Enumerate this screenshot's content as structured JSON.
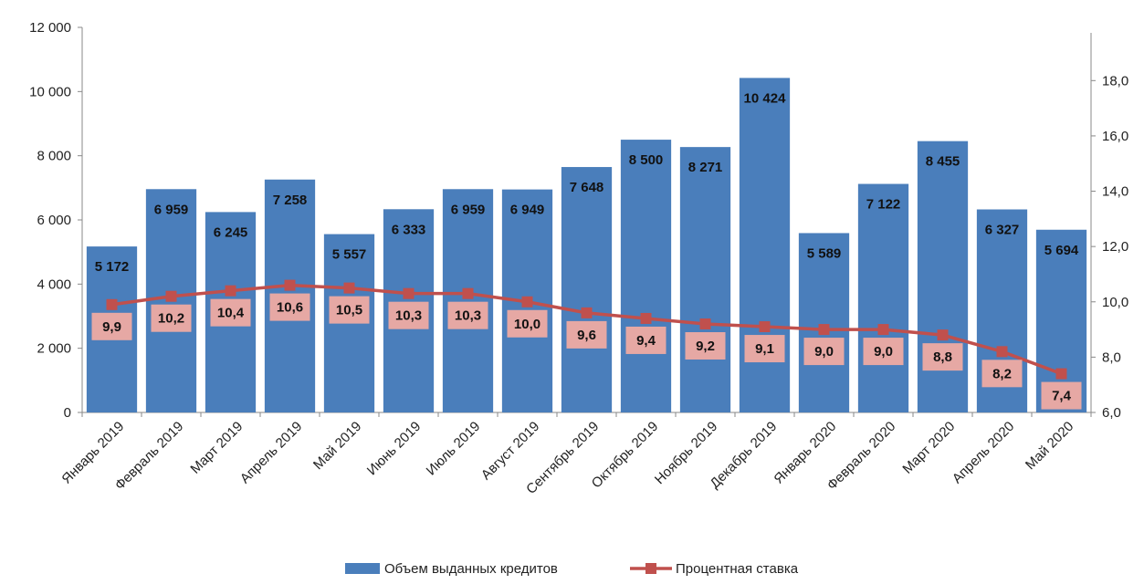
{
  "chart_data": {
    "type": "bar",
    "categories": [
      "Январь 2019",
      "Февраль 2019",
      "Март 2019",
      "Апрель 2019",
      "Май 2019",
      "Июнь 2019",
      "Июль 2019",
      "Август 2019",
      "Сентябрь 2019",
      "Октябрь 2019",
      "Ноябрь 2019",
      "Декабрь 2019",
      "Январь 2020",
      "Февраль 2020",
      "Март 2020",
      "Апрель 2020",
      "Май 2020"
    ],
    "series": [
      {
        "name": "Объем выданных кредитов",
        "type": "bar",
        "axis": "left",
        "color": "#4a7ebb",
        "values": [
          5172,
          6959,
          6245,
          7258,
          5557,
          6333,
          6959,
          6949,
          7648,
          8500,
          8271,
          10424,
          5589,
          7122,
          8455,
          6327,
          5694
        ],
        "labels": [
          "5 172",
          "6 959",
          "6 245",
          "7 258",
          "5 557",
          "6 333",
          "6 959",
          "6 949",
          "7 648",
          "8 500",
          "8 271",
          "10 424",
          "5 589",
          "7 122",
          "8 455",
          "6 327",
          "5 694"
        ]
      },
      {
        "name": "Процентная ставка",
        "type": "line",
        "axis": "right",
        "color": "#c0504d",
        "label_bg": "#e6a8a4",
        "values": [
          9.9,
          10.2,
          10.4,
          10.6,
          10.5,
          10.3,
          10.3,
          10.0,
          9.6,
          9.4,
          9.2,
          9.1,
          9.0,
          9.0,
          8.8,
          8.2,
          7.4
        ],
        "labels": [
          "9,9",
          "10,2",
          "10,4",
          "10,6",
          "10,5",
          "10,3",
          "10,3",
          "10,0",
          "9,6",
          "9,4",
          "9,2",
          "9,1",
          "9,0",
          "9,0",
          "8,8",
          "8,2",
          "7,4"
        ]
      }
    ],
    "y_left": {
      "ylim": [
        0,
        12000
      ],
      "ticks": [
        0,
        2000,
        4000,
        6000,
        8000,
        10000,
        12000
      ],
      "tick_labels": [
        "0",
        "2 000",
        "4 000",
        "6 000",
        "8 000",
        "10 000",
        "12 000"
      ]
    },
    "y_right": {
      "ylim": [
        6.0,
        19.0
      ],
      "ticks": [
        6,
        8,
        10,
        12,
        14,
        16,
        18
      ],
      "tick_labels": [
        "6,0",
        "8,0",
        "10,0",
        "12,0",
        "14,0",
        "16,0",
        "18,0"
      ]
    },
    "grid": false,
    "legend_position": "bottom"
  }
}
